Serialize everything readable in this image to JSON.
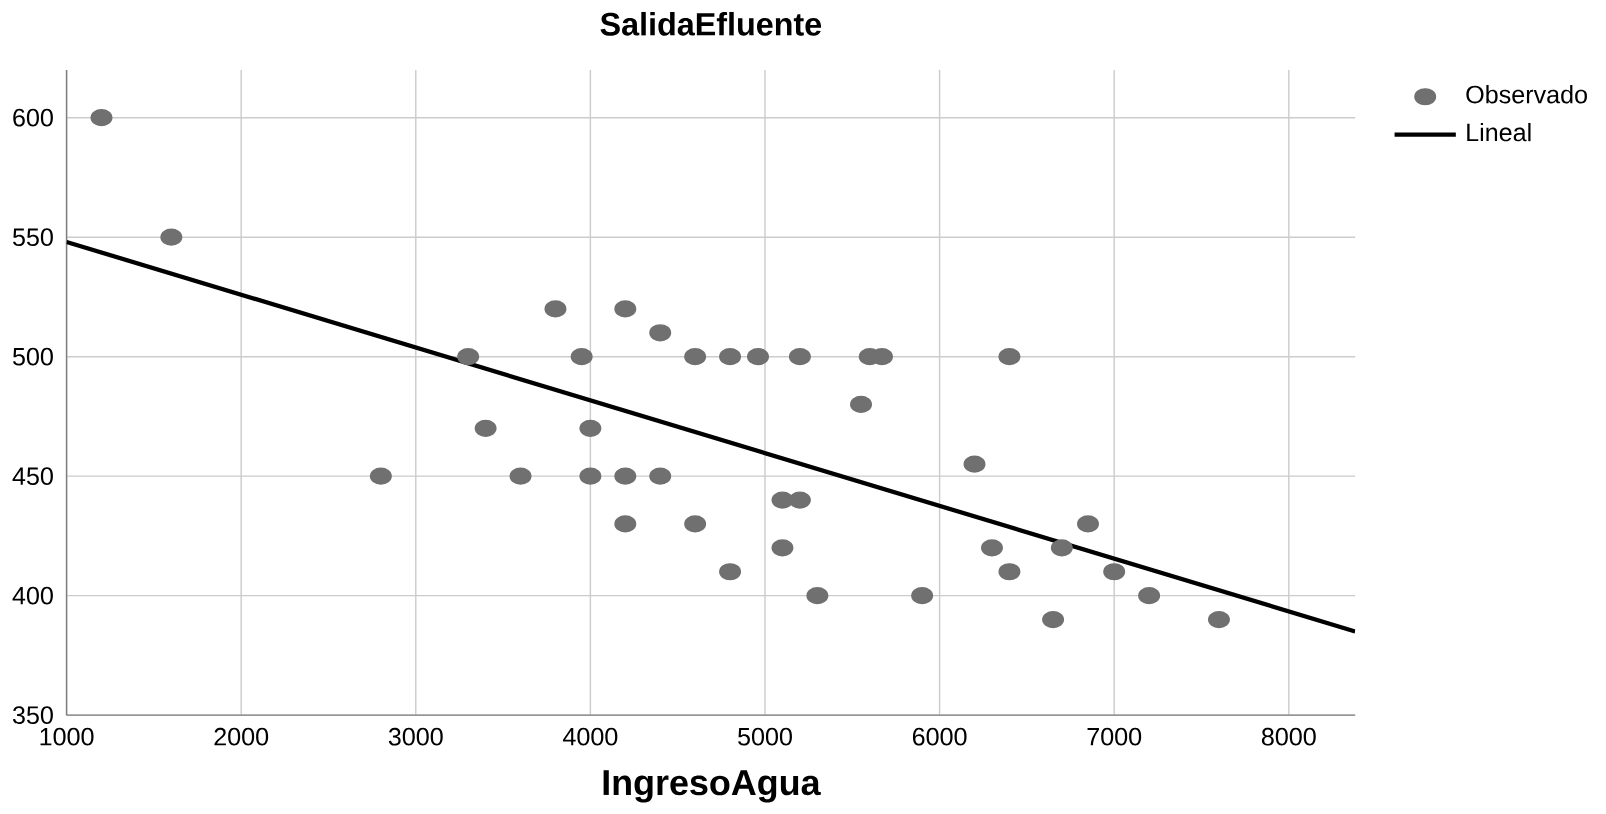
{
  "chart_data": {
    "type": "scatter",
    "title": "SalidaEfluente",
    "xlabel": "IngresoAgua",
    "xlim": [
      1000,
      8380
    ],
    "ylim": [
      350,
      620
    ],
    "xticks": [
      1000,
      2000,
      3000,
      4000,
      5000,
      6000,
      7000,
      8000
    ],
    "yticks": [
      350,
      400,
      450,
      500,
      550,
      600
    ],
    "grid": true,
    "legend": "top right",
    "series": [
      {
        "name": "Observado",
        "marker": "circle",
        "color": "#707070",
        "x": [
          1200,
          1600,
          2800,
          3300,
          3400,
          3600,
          3800,
          3950,
          4000,
          4000,
          4200,
          4200,
          4200,
          4400,
          4400,
          4600,
          4600,
          4800,
          4800,
          4960,
          5100,
          5100,
          5200,
          5200,
          5300,
          5550,
          5600,
          5670,
          5900,
          6200,
          6300,
          6400,
          6400,
          6650,
          6700,
          6850,
          7000,
          7200,
          7600
        ],
        "values": [
          600,
          550,
          450,
          500,
          470,
          450,
          520,
          500,
          470,
          450,
          520,
          450,
          430,
          510,
          450,
          500,
          430,
          500,
          410,
          500,
          440,
          420,
          440,
          500,
          400,
          480,
          500,
          500,
          400,
          455,
          420,
          500,
          410,
          390,
          420,
          430,
          410,
          400,
          390
        ]
      },
      {
        "name": "Lineal",
        "type": "line",
        "marker": "none",
        "color": "#000000",
        "x": [
          1000,
          8380
        ],
        "values": [
          548,
          385
        ]
      }
    ]
  }
}
